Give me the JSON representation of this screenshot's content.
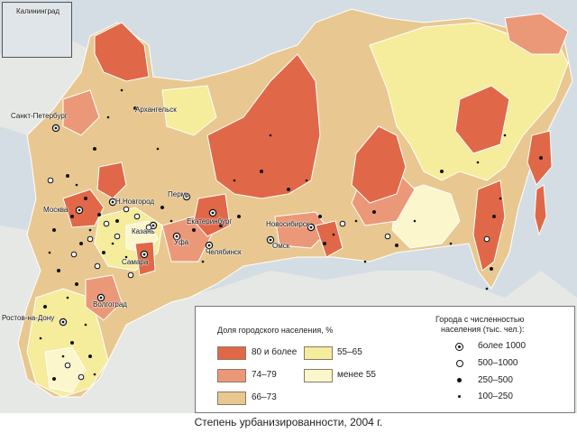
{
  "caption": "Степень урбанизированности, 2004 г.",
  "inset": {
    "label": "Калининград"
  },
  "legend": {
    "share_title": "Доля городского населения, %",
    "classes": [
      {
        "label": "80 и более",
        "color": "#e06848"
      },
      {
        "label": "74–79",
        "color": "#eb9878"
      },
      {
        "label": "66–73",
        "color": "#e8c890"
      },
      {
        "label": "55–65",
        "color": "#f5ec9c"
      },
      {
        "label": "менее 55",
        "color": "#fbf6cc"
      }
    ],
    "cities_title_line1": "Города с численностью",
    "cities_title_line2": "населения (тыс. чел.):",
    "city_sizes": [
      {
        "label": "более 1000",
        "symbol": "ringed-dot"
      },
      {
        "label": "500–1000",
        "symbol": "open-circle"
      },
      {
        "label": "250–500",
        "symbol": "dot"
      },
      {
        "label": "100–250",
        "symbol": "small-dot"
      }
    ]
  },
  "cities": [
    {
      "name": "Санкт-Петербург",
      "size": "более 1000"
    },
    {
      "name": "Архангельск",
      "size": "250–500"
    },
    {
      "name": "Москва",
      "size": "более 1000"
    },
    {
      "name": "Н.Новгород",
      "size": "более 1000"
    },
    {
      "name": "Пермь",
      "size": "более 1000"
    },
    {
      "name": "Казань",
      "size": "более 1000"
    },
    {
      "name": "Екатеринбург",
      "size": "более 1000"
    },
    {
      "name": "Новосибирск",
      "size": "более 1000"
    },
    {
      "name": "Уфа",
      "size": "более 1000"
    },
    {
      "name": "Омск",
      "size": "более 1000"
    },
    {
      "name": "Самара",
      "size": "более 1000"
    },
    {
      "name": "Челябинск",
      "size": "более 1000"
    },
    {
      "name": "Волгоград",
      "size": "более 1000"
    },
    {
      "name": "Ростов-на-Дону",
      "size": "более 1000"
    }
  ],
  "colors": {
    "sea": "#d4dde3",
    "neighbor_land": "#e6e8e6",
    "border": "#ffffff"
  }
}
